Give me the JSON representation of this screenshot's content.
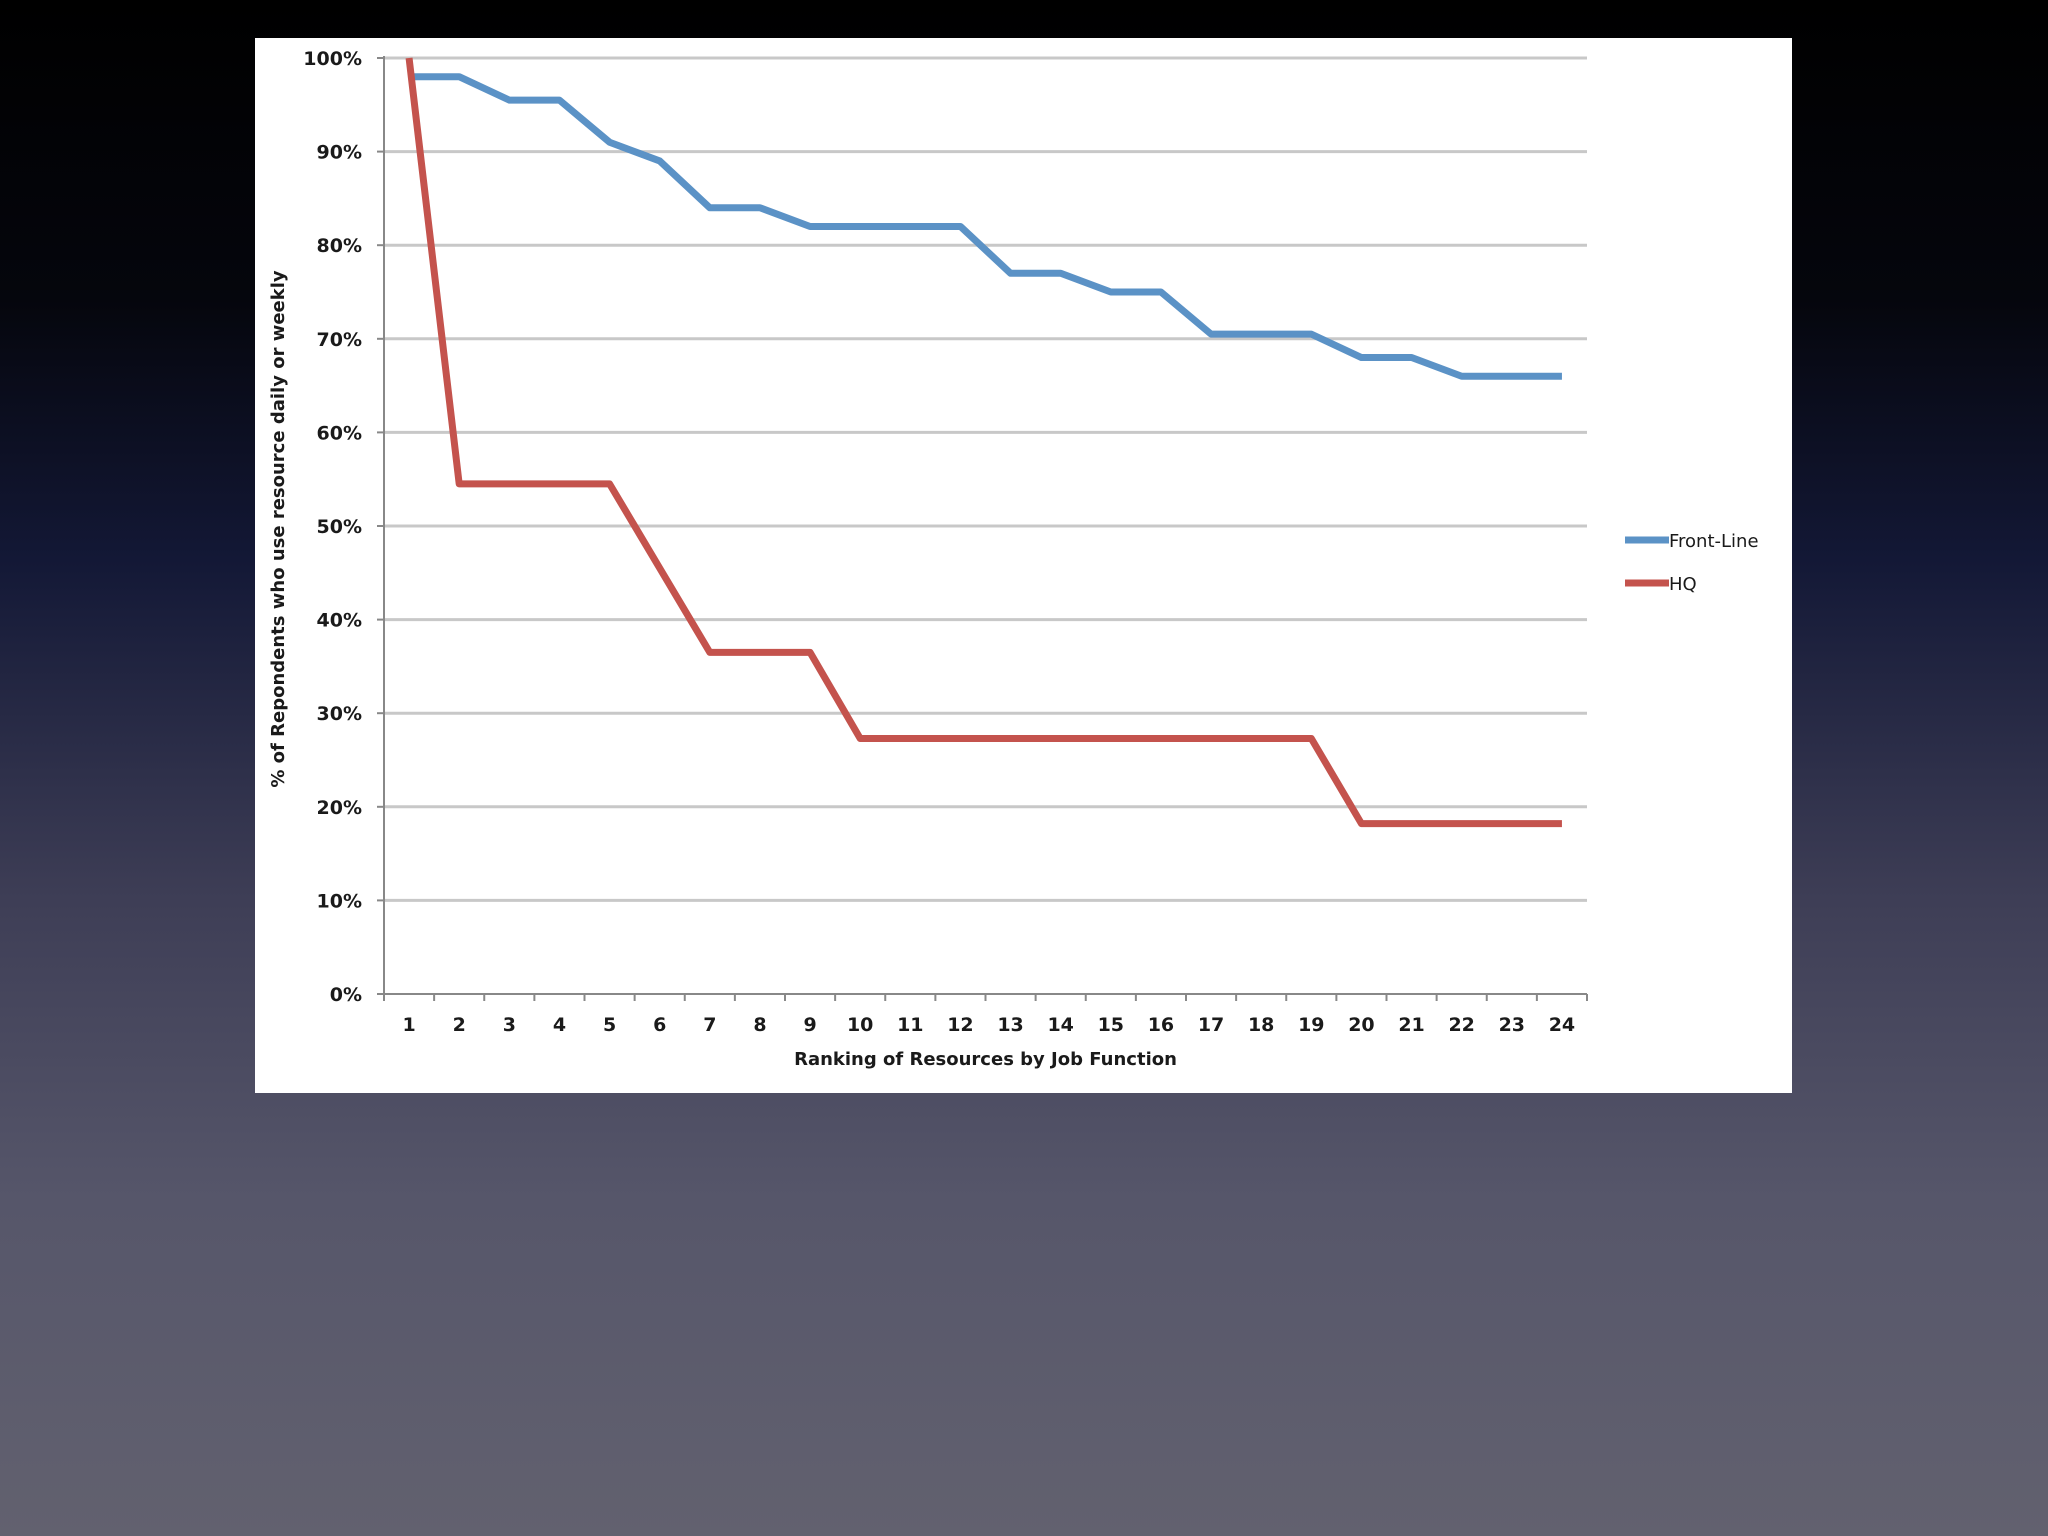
{
  "chart_data": {
    "type": "line",
    "title": "",
    "xlabel": "Ranking of Resources by Job Function",
    "ylabel": "% of Repondents who use resource daily or weekly",
    "x": [
      1,
      2,
      3,
      4,
      5,
      6,
      7,
      8,
      9,
      10,
      11,
      12,
      13,
      14,
      15,
      16,
      17,
      18,
      19,
      20,
      21,
      22,
      23,
      24
    ],
    "xlim": [
      0.5,
      24.5
    ],
    "ylim": [
      0,
      100
    ],
    "ytick_values": [
      0,
      10,
      20,
      30,
      40,
      50,
      60,
      70,
      80,
      90,
      100
    ],
    "ytick_labels": [
      "0%",
      "10%",
      "20%",
      "30%",
      "40%",
      "50%",
      "60%",
      "70%",
      "80%",
      "90%",
      "100%"
    ],
    "xtick_labels": [
      "1",
      "2",
      "3",
      "4",
      "5",
      "6",
      "7",
      "8",
      "9",
      "10",
      "11",
      "12",
      "13",
      "14",
      "15",
      "16",
      "17",
      "18",
      "19",
      "20",
      "21",
      "22",
      "23",
      "24"
    ],
    "grid": true,
    "legend_position": "right",
    "series": [
      {
        "name": "Front-Line",
        "color": "#5b92c6",
        "values": [
          98,
          98,
          95.5,
          95.5,
          91,
          89,
          84,
          84,
          82,
          82,
          82,
          82,
          77,
          77,
          75,
          75,
          70.5,
          70.5,
          70.5,
          68,
          68,
          66,
          66,
          66
        ]
      },
      {
        "name": "HQ",
        "color": "#c4534d",
        "values": [
          100,
          54.5,
          54.5,
          54.5,
          54.5,
          45.5,
          36.5,
          36.5,
          36.5,
          27.3,
          27.3,
          27.3,
          27.3,
          27.3,
          27.3,
          27.3,
          27.3,
          27.3,
          27.3,
          18.2,
          18.2,
          18.2,
          18.2,
          18.2
        ]
      }
    ]
  }
}
